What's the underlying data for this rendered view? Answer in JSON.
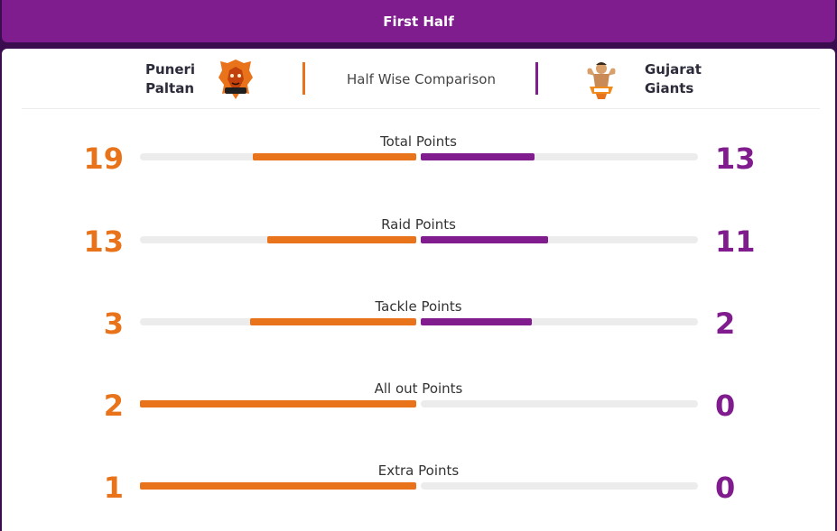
{
  "tab": {
    "label": "First Half"
  },
  "header": {
    "home_team": {
      "line1": "Puneri",
      "line2": "Paltan",
      "color": "#e8731a",
      "logo_icon": "puneri-paltan-logo"
    },
    "away_team": {
      "line1": "Gujarat",
      "line2": "Giants",
      "color": "#801c8d",
      "logo_icon": "gujarat-giants-logo"
    },
    "title": "Half Wise Comparison"
  },
  "stats": [
    {
      "label": "Total Points",
      "home": "19",
      "away": "13",
      "home_fill": 0.59,
      "away_fill": 0.41
    },
    {
      "label": "Raid Points",
      "home": "13",
      "away": "11",
      "home_fill": 0.54,
      "away_fill": 0.46
    },
    {
      "label": "Tackle Points",
      "home": "3",
      "away": "2",
      "home_fill": 0.6,
      "away_fill": 0.4
    },
    {
      "label": "All out Points",
      "home": "2",
      "away": "0",
      "home_fill": 1.0,
      "away_fill": 0.0
    },
    {
      "label": "Extra Points",
      "home": "1",
      "away": "0",
      "home_fill": 1.0,
      "away_fill": 0.0
    }
  ]
}
